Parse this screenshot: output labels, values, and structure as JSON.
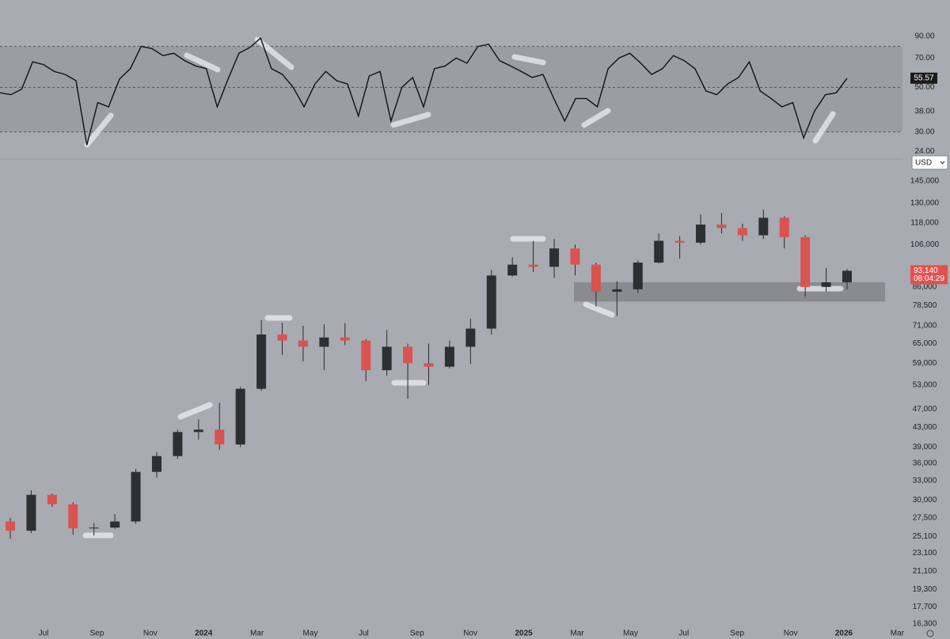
{
  "chart_data": [
    {
      "type": "line",
      "color": "#111111",
      "log_scale": true,
      "ylim": [
        22,
        135
      ],
      "yticks": [
        {
          "value": 90,
          "label": "90.00"
        },
        {
          "value": 70,
          "label": "70.00"
        },
        {
          "value": 50,
          "label": "50.00"
        },
        {
          "value": 38,
          "label": "38.00"
        },
        {
          "value": 30,
          "label": "30.00"
        },
        {
          "value": 24,
          "label": "24.00"
        }
      ],
      "bands": [
        30,
        80
      ],
      "midline": 50,
      "values": [
        47,
        46,
        49,
        67,
        65,
        60,
        58,
        54,
        25.8,
        42,
        40,
        55,
        62,
        80,
        78,
        72,
        74,
        68,
        64,
        62,
        40,
        55,
        74,
        79,
        88,
        62,
        58,
        50,
        40,
        52,
        60,
        54,
        52,
        36,
        57,
        60,
        34,
        50,
        56,
        40,
        62,
        64,
        70,
        66,
        80,
        82,
        68,
        64,
        60,
        56,
        58,
        44,
        34,
        44,
        44,
        40,
        62,
        70,
        74,
        66,
        58,
        62,
        72,
        68,
        62,
        48,
        46,
        52,
        56,
        67,
        48,
        44,
        40,
        42,
        28,
        38,
        46,
        47,
        55.57
      ]
    },
    {
      "type": "candlestick",
      "log_scale": true,
      "ylim": [
        15900,
        155000
      ],
      "up_color": "#2e2f33",
      "down_color": "#d9534f",
      "currency": "USD",
      "last_label": "93,140",
      "countdown": "08:04:29",
      "zone": [
        80000,
        88000
      ],
      "yticks": [
        {
          "value": 145000,
          "label": "145,000"
        },
        {
          "value": 130000,
          "label": "130,000"
        },
        {
          "value": 118000,
          "label": "118,000"
        },
        {
          "value": 106000,
          "label": "106,000"
        },
        {
          "value": 86000,
          "label": "86,000"
        },
        {
          "value": 78500,
          "label": "78,500"
        },
        {
          "value": 71000,
          "label": "71,000"
        },
        {
          "value": 65000,
          "label": "65,000"
        },
        {
          "value": 59000,
          "label": "59,000"
        },
        {
          "value": 53000,
          "label": "53,000"
        },
        {
          "value": 47000,
          "label": "47,000"
        },
        {
          "value": 43000,
          "label": "43,000"
        },
        {
          "value": 39000,
          "label": "39,000"
        },
        {
          "value": 36000,
          "label": "36,000"
        },
        {
          "value": 33000,
          "label": "33,000"
        },
        {
          "value": 30000,
          "label": "30,000"
        },
        {
          "value": 27500,
          "label": "27,500"
        },
        {
          "value": 25100,
          "label": "25,100"
        },
        {
          "value": 23100,
          "label": "23,100"
        },
        {
          "value": 21100,
          "label": "21,100"
        },
        {
          "value": 19300,
          "label": "19,300"
        },
        {
          "value": 17700,
          "label": "17,700"
        },
        {
          "value": 16300,
          "label": "16,300"
        }
      ],
      "time_labels": [
        "Jul",
        "Sep",
        "Nov",
        "2024",
        "Mar",
        "May",
        "Jul",
        "Sep",
        "Nov",
        "2025",
        "Mar",
        "May",
        "Jul",
        "Sep",
        "Nov",
        "2026",
        "Mar"
      ],
      "open": [
        27000,
        25800,
        30800,
        29400,
        26100,
        26200,
        27000,
        34500,
        37300,
        42000,
        42500,
        39500,
        52000,
        68000,
        66000,
        64000,
        67000,
        66000,
        57000,
        64000,
        59000,
        58000,
        64000,
        70000,
        91000,
        96000,
        95000,
        104000,
        96000,
        84000,
        85000,
        97000,
        108000,
        107000,
        117000,
        115000,
        111000,
        121000,
        110000,
        86000,
        88000
      ],
      "high": [
        27500,
        31500,
        31000,
        29700,
        26800,
        28000,
        35000,
        38000,
        42500,
        44700,
        48500,
        52500,
        73000,
        72000,
        71000,
        71500,
        72000,
        66500,
        69500,
        65000,
        65000,
        66000,
        73500,
        93500,
        99500,
        108000,
        109000,
        106000,
        97000,
        88500,
        98000,
        112000,
        110500,
        123000,
        124000,
        117500,
        126000,
        122000,
        111000,
        94500,
        94000
      ],
      "low": [
        24800,
        25500,
        29000,
        25300,
        25200,
        26000,
        26700,
        33500,
        36800,
        40500,
        38500,
        39000,
        51500,
        61500,
        59500,
        57000,
        64500,
        54000,
        55500,
        49500,
        53000,
        57500,
        58800,
        68000,
        90500,
        92500,
        90000,
        91000,
        78000,
        74500,
        83500,
        96500,
        99000,
        106000,
        112000,
        108000,
        109000,
        104000,
        82000,
        84000,
        85000
      ],
      "close": [
        25800,
        30800,
        29400,
        26100,
        26200,
        27000,
        34500,
        37300,
        42000,
        42500,
        39500,
        52000,
        68000,
        66000,
        64000,
        67000,
        66000,
        57000,
        64000,
        59000,
        58000,
        64000,
        70000,
        91000,
        96000,
        95000,
        104000,
        96000,
        84000,
        85000,
        97000,
        108000,
        107000,
        117000,
        115000,
        111000,
        121000,
        110000,
        86000,
        88000,
        93140
      ]
    }
  ]
}
